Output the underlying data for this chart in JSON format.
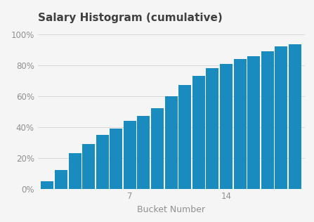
{
  "title": "Salary Histogram (cumulative)",
  "xlabel": "Bucket Number",
  "bar_color": "#1a8bbf",
  "background_color": "#f5f5f5",
  "plot_bg_color": "#f5f5f5",
  "grid_color": "#d8d8d8",
  "values": [
    0.05,
    0.12,
    0.23,
    0.29,
    0.35,
    0.39,
    0.44,
    0.47,
    0.52,
    0.6,
    0.67,
    0.73,
    0.78,
    0.81,
    0.84,
    0.86,
    0.89,
    0.92,
    0.935
  ],
  "xtick_positions": [
    7,
    14
  ],
  "ylim": [
    0,
    1.05
  ],
  "ytick_labels": [
    "0%",
    "20%",
    "40%",
    "60%",
    "80%",
    "100%"
  ],
  "ytick_values": [
    0,
    0.2,
    0.4,
    0.6,
    0.8,
    1.0
  ],
  "title_fontsize": 11,
  "label_fontsize": 9,
  "tick_fontsize": 8.5,
  "bar_width": 0.92,
  "title_color": "#404040",
  "tick_color": "#909090",
  "xlabel_color": "#909090"
}
